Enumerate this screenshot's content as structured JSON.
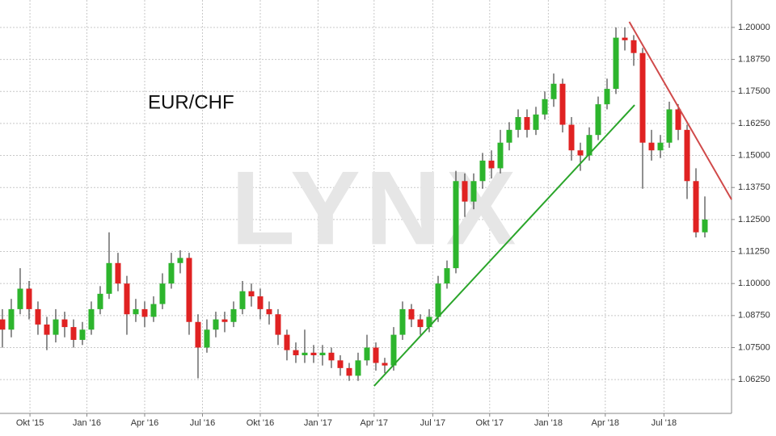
{
  "chart_data": {
    "type": "candlestick",
    "title": "EUR/CHF",
    "watermark": "LYNX",
    "up_color": "#2db52d",
    "down_color": "#e02222",
    "wick_color": "#222222",
    "xlim": [
      -0.27,
      82
    ],
    "xticks": [
      {
        "value": 3.1,
        "label": "Okt '15"
      },
      {
        "value": 9.5,
        "label": "Jan '16"
      },
      {
        "value": 16,
        "label": "Apr '16"
      },
      {
        "value": 22.5,
        "label": "Jul '16"
      },
      {
        "value": 29,
        "label": "Okt '16"
      },
      {
        "value": 35.5,
        "label": "Jan '17"
      },
      {
        "value": 41.8,
        "label": "Apr '17"
      },
      {
        "value": 48.4,
        "label": "Jul '17"
      },
      {
        "value": 54.8,
        "label": "Okt '17"
      },
      {
        "value": 61.4,
        "label": "Jan '18"
      },
      {
        "value": 67.8,
        "label": "Apr '18"
      },
      {
        "value": 74.4,
        "label": "Jul '18"
      }
    ],
    "ylim": [
      1.0493,
      1.2107
    ],
    "yticks": [
      {
        "value": 1.0625,
        "label": "1.06250"
      },
      {
        "value": 1.075,
        "label": "1.07500"
      },
      {
        "value": 1.0875,
        "label": "1.08750"
      },
      {
        "value": 1.1,
        "label": "1.10000"
      },
      {
        "value": 1.1125,
        "label": "1.11250"
      },
      {
        "value": 1.125,
        "label": "1.12500"
      },
      {
        "value": 1.1375,
        "label": "1.13750"
      },
      {
        "value": 1.15,
        "label": "1.15000"
      },
      {
        "value": 1.1625,
        "label": "1.16250"
      },
      {
        "value": 1.175,
        "label": "1.17500"
      },
      {
        "value": 1.1875,
        "label": "1.18750"
      },
      {
        "value": 1.2,
        "label": "1.20000"
      }
    ],
    "grid": true,
    "open": [
      1.086,
      1.082,
      1.09,
      1.098,
      1.09,
      1.084,
      1.08,
      1.086,
      1.083,
      1.078,
      1.082,
      1.09,
      1.096,
      1.108,
      1.1,
      1.088,
      1.09,
      1.087,
      1.092,
      1.1,
      1.108,
      1.11,
      1.085,
      1.075,
      1.082,
      1.086,
      1.085,
      1.09,
      1.097,
      1.095,
      1.09,
      1.088,
      1.08,
      1.074,
      1.072,
      1.073,
      1.072,
      1.073,
      1.07,
      1.067,
      1.064,
      1.07,
      1.075,
      1.069,
      1.068,
      1.08,
      1.09,
      1.086,
      1.083,
      1.087,
      1.1,
      1.106,
      1.14,
      1.132,
      1.14,
      1.148,
      1.145,
      1.155,
      1.16,
      1.165,
      1.16,
      1.166,
      1.172,
      1.178,
      1.162,
      1.152,
      1.15,
      1.158,
      1.17,
      1.176,
      1.196,
      1.195,
      1.19,
      1.155,
      1.152,
      1.155,
      1.168,
      1.16,
      1.14,
      1.12
    ],
    "high": [
      1.09,
      1.094,
      1.106,
      1.101,
      1.093,
      1.087,
      1.09,
      1.089,
      1.086,
      1.085,
      1.093,
      1.099,
      1.12,
      1.112,
      1.103,
      1.094,
      1.093,
      1.095,
      1.104,
      1.112,
      1.113,
      1.112,
      1.088,
      1.086,
      1.089,
      1.089,
      1.093,
      1.101,
      1.1,
      1.098,
      1.093,
      1.09,
      1.082,
      1.077,
      1.082,
      1.076,
      1.076,
      1.075,
      1.072,
      1.069,
      1.073,
      1.08,
      1.077,
      1.071,
      1.083,
      1.093,
      1.092,
      1.088,
      1.09,
      1.103,
      1.109,
      1.144,
      1.143,
      1.143,
      1.151,
      1.152,
      1.16,
      1.163,
      1.168,
      1.168,
      1.169,
      1.175,
      1.182,
      1.18,
      1.165,
      1.155,
      1.161,
      1.173,
      1.18,
      1.2,
      1.2,
      1.197,
      1.192,
      1.16,
      1.158,
      1.171,
      1.17,
      1.162,
      1.145,
      1.134
    ],
    "low": [
      1.075,
      1.079,
      1.088,
      1.086,
      1.08,
      1.074,
      1.077,
      1.079,
      1.075,
      1.076,
      1.08,
      1.088,
      1.094,
      1.097,
      1.08,
      1.085,
      1.083,
      1.085,
      1.09,
      1.098,
      1.104,
      1.08,
      1.063,
      1.073,
      1.079,
      1.081,
      1.083,
      1.088,
      1.091,
      1.086,
      1.084,
      1.076,
      1.07,
      1.069,
      1.069,
      1.069,
      1.068,
      1.067,
      1.064,
      1.062,
      1.062,
      1.068,
      1.066,
      1.065,
      1.066,
      1.078,
      1.083,
      1.08,
      1.081,
      1.085,
      1.098,
      1.104,
      1.126,
      1.129,
      1.137,
      1.141,
      1.143,
      1.152,
      1.157,
      1.157,
      1.158,
      1.164,
      1.169,
      1.159,
      1.148,
      1.144,
      1.148,
      1.156,
      1.168,
      1.174,
      1.191,
      1.185,
      1.137,
      1.148,
      1.149,
      1.153,
      1.156,
      1.133,
      1.118,
      1.118
    ],
    "close": [
      1.082,
      1.09,
      1.098,
      1.09,
      1.084,
      1.08,
      1.086,
      1.083,
      1.078,
      1.082,
      1.09,
      1.096,
      1.108,
      1.1,
      1.088,
      1.09,
      1.087,
      1.092,
      1.1,
      1.108,
      1.11,
      1.085,
      1.075,
      1.082,
      1.086,
      1.085,
      1.09,
      1.097,
      1.095,
      1.09,
      1.088,
      1.08,
      1.074,
      1.072,
      1.073,
      1.072,
      1.073,
      1.07,
      1.067,
      1.064,
      1.07,
      1.075,
      1.069,
      1.068,
      1.08,
      1.09,
      1.086,
      1.083,
      1.087,
      1.1,
      1.106,
      1.14,
      1.132,
      1.14,
      1.148,
      1.145,
      1.155,
      1.16,
      1.165,
      1.16,
      1.166,
      1.172,
      1.178,
      1.162,
      1.152,
      1.15,
      1.158,
      1.17,
      1.176,
      1.196,
      1.195,
      1.19,
      1.155,
      1.152,
      1.155,
      1.168,
      1.16,
      1.14,
      1.12,
      1.125
    ],
    "trendlines": [
      {
        "color": "#2aa52a",
        "x": [
          41.8,
          71.1
        ],
        "y": [
          1.06,
          1.1697
        ]
      },
      {
        "color": "#d04a4a",
        "x": [
          70.5,
          82
        ],
        "y": [
          1.2022,
          1.1328
        ]
      }
    ]
  }
}
